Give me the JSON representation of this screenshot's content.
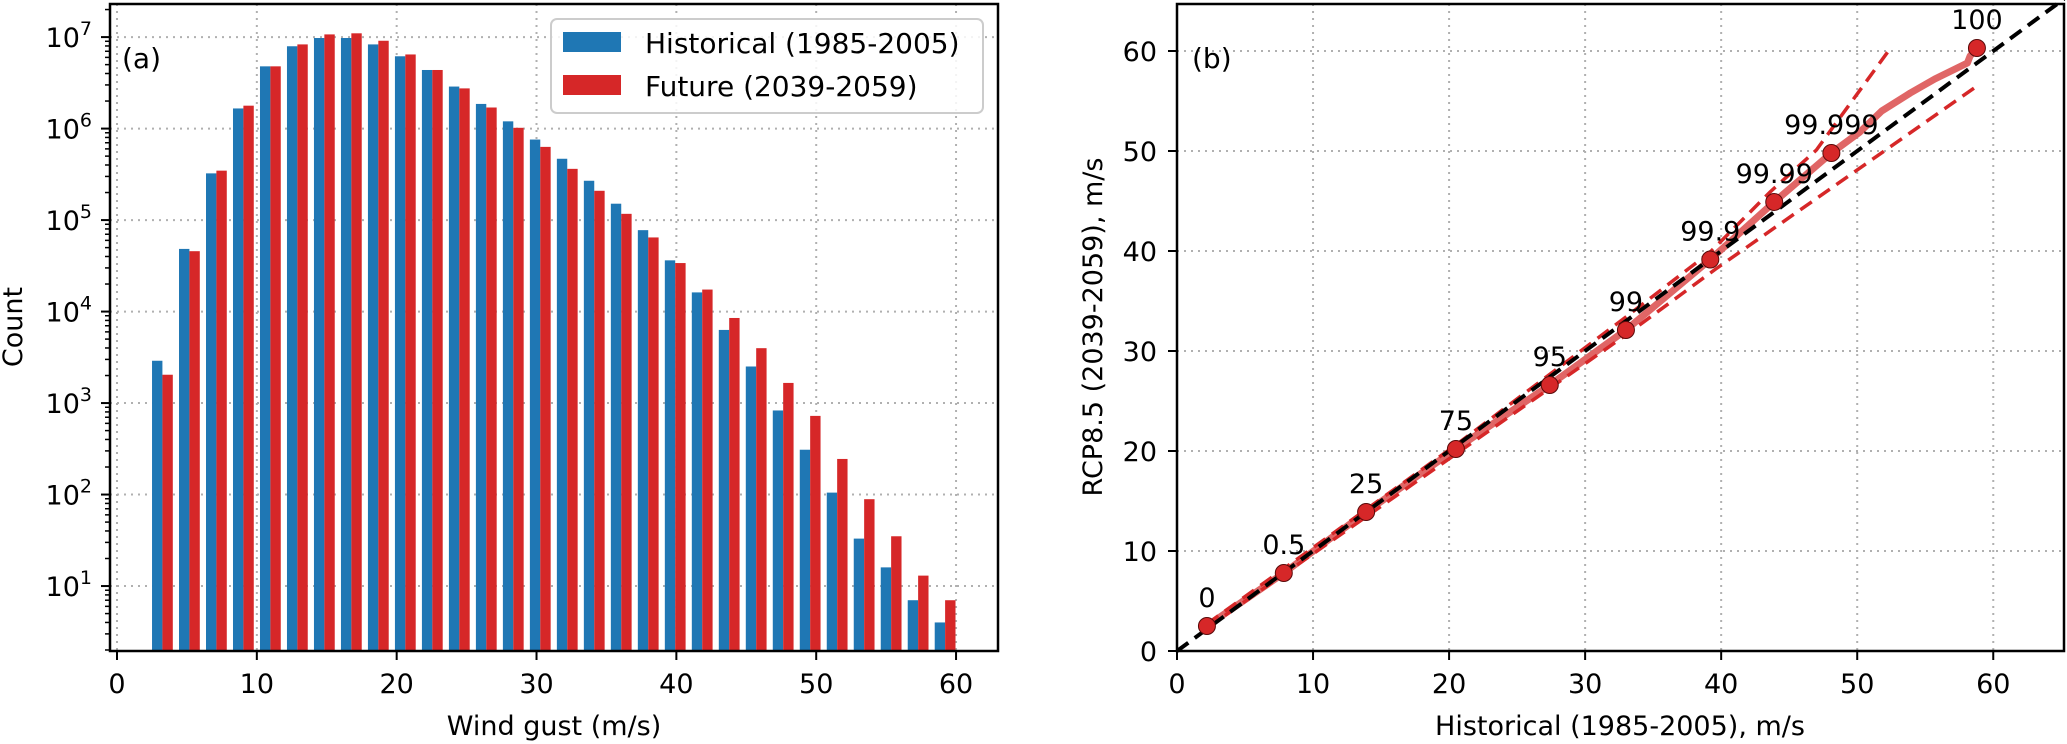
{
  "chart_data": [
    {
      "type": "bar",
      "panel_tag": "(a)",
      "title": "",
      "xlabel": "Wind gust (m/s)",
      "ylabel": "Count",
      "yscale": "log",
      "xlim": [
        -0.5,
        63
      ],
      "ylim": [
        1.95,
        23000000
      ],
      "xticks": [
        0,
        10,
        20,
        30,
        40,
        50,
        60
      ],
      "yticks": [
        10,
        100,
        1000,
        10000,
        100000,
        1000000,
        10000000
      ],
      "ytick_base": "10",
      "grid": true,
      "legend_position": "top-right",
      "bin_width": 1.93,
      "categories": [
        3.47,
        5.4,
        7.33,
        9.26,
        11.19,
        13.12,
        15.05,
        16.98,
        18.91,
        20.84,
        22.77,
        24.7,
        26.63,
        28.56,
        30.49,
        32.42,
        34.35,
        36.28,
        38.21,
        40.14,
        42.07,
        44.0,
        45.93,
        47.86,
        49.79,
        51.72,
        53.65,
        55.58,
        57.51,
        59.44
      ],
      "series": [
        {
          "name": "Historical (1985-2005)",
          "color": "#1f77b4",
          "values": [
            2900,
            48400,
            324000,
            1660000,
            4790000,
            7940000,
            9770000,
            9770000,
            8320000,
            6170000,
            4370000,
            2880000,
            1860000,
            1200000,
            759000,
            468000,
            269000,
            151000,
            77600,
            36300,
            16200,
            6300,
            2510,
            830,
            309,
            105,
            33,
            16,
            7,
            4
          ]
        },
        {
          "name": "Future (2039-2059)",
          "color": "#d62728",
          "values": [
            2040,
            45700,
            347000,
            1780000,
            4790000,
            8320000,
            10700000,
            11000000,
            9120000,
            6460000,
            4370000,
            2750000,
            1700000,
            1020000,
            631000,
            363000,
            209000,
            117000,
            64600,
            33900,
            17400,
            8510,
            3980,
            1660,
            724,
            245,
            89,
            35,
            13,
            7
          ]
        }
      ]
    },
    {
      "type": "scatter",
      "panel_tag": "(b)",
      "title": "",
      "xlabel": "Historical (1985-2005), m/s",
      "ylabel": "RCP8.5 (2039-2059), m/s",
      "xlim": [
        0,
        65.2
      ],
      "ylim": [
        0,
        64.7
      ],
      "xticks": [
        0,
        10,
        20,
        30,
        40,
        50,
        60
      ],
      "yticks": [
        0,
        10,
        20,
        30,
        40,
        50,
        60
      ],
      "grid": true,
      "colors": {
        "points": "#d62728",
        "quantile_curve": "#e06666",
        "bounds": "#d62728",
        "one_to_one": "#000000"
      },
      "percentile_points": [
        {
          "label": "0",
          "x": 2.2,
          "y": 2.5
        },
        {
          "label": "0.5",
          "x": 7.85,
          "y": 7.8
        },
        {
          "label": "25",
          "x": 13.9,
          "y": 13.9
        },
        {
          "label": "75",
          "x": 20.5,
          "y": 20.2
        },
        {
          "label": "95",
          "x": 27.4,
          "y": 26.6
        },
        {
          "label": "99",
          "x": 33.0,
          "y": 32.1
        },
        {
          "label": "99.9",
          "x": 39.2,
          "y": 39.15
        },
        {
          "label": "99.99",
          "x": 43.9,
          "y": 44.9
        },
        {
          "label": "99.999",
          "x": 48.1,
          "y": 49.8
        },
        {
          "label": "100",
          "x": 58.8,
          "y": 60.3
        }
      ],
      "quantile_curve": [
        [
          2.2,
          2.5
        ],
        [
          7.85,
          7.8
        ],
        [
          13.9,
          13.9
        ],
        [
          20.5,
          20.2
        ],
        [
          27.4,
          26.6
        ],
        [
          33.0,
          32.1
        ],
        [
          39.2,
          39.15
        ],
        [
          43.9,
          44.9
        ],
        [
          48.1,
          49.8
        ],
        [
          50.2,
          51.9
        ],
        [
          51.8,
          54.0
        ],
        [
          53.9,
          55.8
        ],
        [
          55.7,
          57.2
        ],
        [
          58.1,
          58.8
        ],
        [
          58.3,
          59.5
        ],
        [
          58.8,
          60.3
        ]
      ],
      "upper_bound": [
        [
          2.2,
          2.7
        ],
        [
          20.5,
          20.6
        ],
        [
          33.0,
          33.4
        ],
        [
          39.2,
          39.9
        ],
        [
          43.6,
          45.9
        ],
        [
          47.0,
          50.1
        ],
        [
          52.4,
          60.2
        ]
      ],
      "lower_bound": [
        [
          2.2,
          2.3
        ],
        [
          20.5,
          19.7
        ],
        [
          33.0,
          31.6
        ],
        [
          39.6,
          38.2
        ],
        [
          48.0,
          46.2
        ],
        [
          58.7,
          56.4
        ]
      ],
      "one_to_one": [
        [
          0,
          0
        ],
        [
          65.2,
          65.2
        ]
      ]
    }
  ]
}
